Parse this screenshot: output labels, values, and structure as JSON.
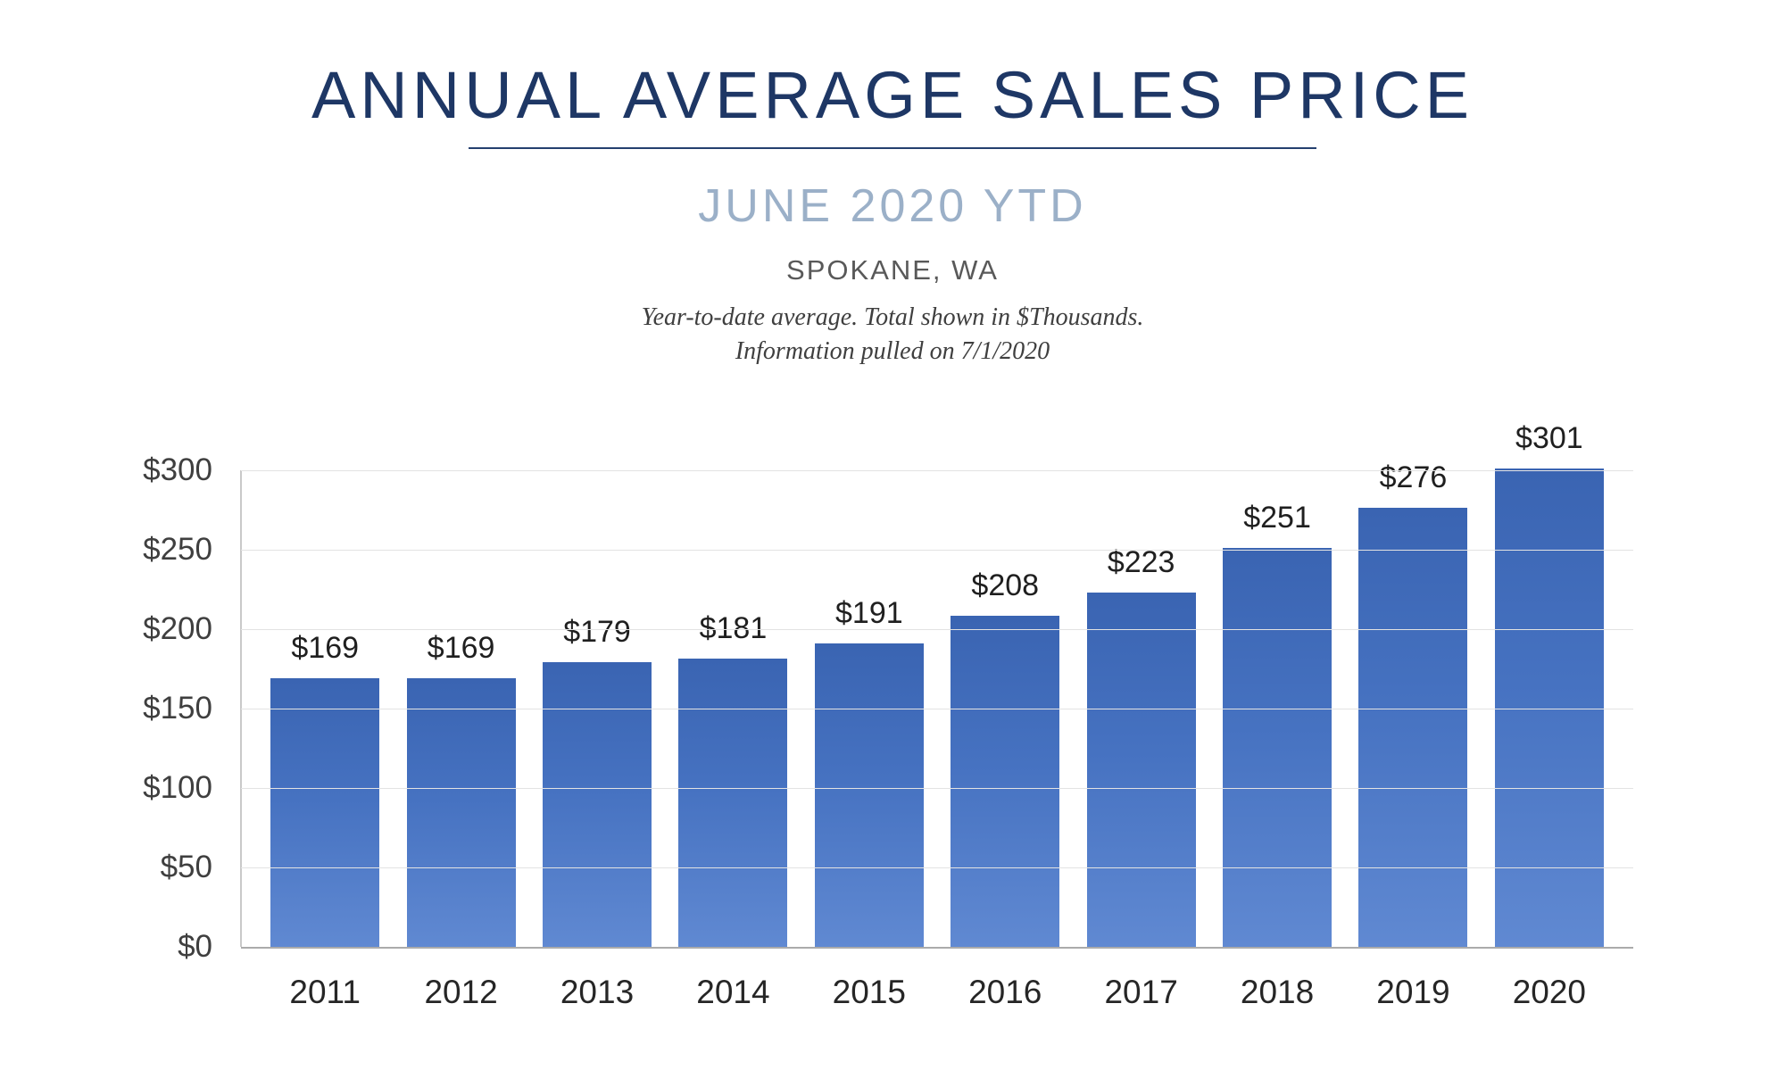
{
  "header": {
    "title": "ANNUAL AVERAGE SALES PRICE",
    "subtitle": "JUNE 2020 YTD",
    "location": "SPOKANE, WA",
    "note_line1": "Year-to-date average.  Total shown in $Thousands.",
    "note_line2": "Information pulled on 7/1/2020"
  },
  "chart_data": {
    "type": "bar",
    "title": "ANNUAL AVERAGE SALES PRICE",
    "subtitle": "JUNE 2020 YTD — SPOKANE, WA",
    "categories": [
      "2011",
      "2012",
      "2013",
      "2014",
      "2015",
      "2016",
      "2017",
      "2018",
      "2019",
      "2020"
    ],
    "values": [
      169,
      169,
      179,
      181,
      191,
      208,
      223,
      251,
      276,
      301
    ],
    "data_labels": [
      "$169",
      "$169",
      "$179",
      "$181",
      "$191",
      "$208",
      "$223",
      "$251",
      "$276",
      "$301"
    ],
    "xlabel": "",
    "ylabel": "",
    "ylim": [
      0,
      300
    ],
    "ytick_step": 50,
    "yticks": [
      "$0",
      "$50",
      "$100",
      "$150",
      "$200",
      "$250",
      "$300"
    ],
    "grid": "horizontal-light",
    "legend": "none",
    "units": "$Thousands"
  },
  "colors": {
    "title_navy": "#1E3765",
    "subtitle_blue_gray": "#9BB0C8",
    "location_gray": "#595959",
    "bar_gradient_top": "#3A64B2",
    "bar_gradient_bottom": "#6089D2",
    "gridline": "#E3E3E3",
    "axis_line": "#ABABAB",
    "label_dark": "#1F1F1F"
  }
}
